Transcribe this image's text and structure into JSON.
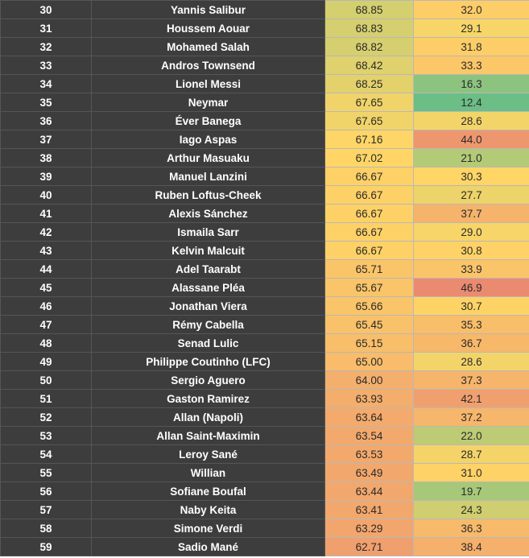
{
  "table": {
    "rows": [
      {
        "rank": "30",
        "name": "Yannis Salibur",
        "v1": "68.85",
        "v2": "32.0"
      },
      {
        "rank": "31",
        "name": "Houssem Aouar",
        "v1": "68.83",
        "v2": "29.1"
      },
      {
        "rank": "32",
        "name": "Mohamed Salah",
        "v1": "68.82",
        "v2": "31.8"
      },
      {
        "rank": "33",
        "name": "Andros Townsend",
        "v1": "68.42",
        "v2": "33.3"
      },
      {
        "rank": "34",
        "name": "Lionel Messi",
        "v1": "68.25",
        "v2": "16.3"
      },
      {
        "rank": "35",
        "name": "Neymar",
        "v1": "67.65",
        "v2": "12.4"
      },
      {
        "rank": "36",
        "name": "Éver Banega",
        "v1": "67.65",
        "v2": "28.6"
      },
      {
        "rank": "37",
        "name": "Iago Aspas",
        "v1": "67.16",
        "v2": "44.0"
      },
      {
        "rank": "38",
        "name": "Arthur Masuaku",
        "v1": "67.02",
        "v2": "21.0"
      },
      {
        "rank": "39",
        "name": "Manuel Lanzini",
        "v1": "66.67",
        "v2": "30.3"
      },
      {
        "rank": "40",
        "name": "Ruben Loftus-Cheek",
        "v1": "66.67",
        "v2": "27.7"
      },
      {
        "rank": "41",
        "name": "Alexis Sánchez",
        "v1": "66.67",
        "v2": "37.7"
      },
      {
        "rank": "42",
        "name": "Ismaila Sarr",
        "v1": "66.67",
        "v2": "29.0"
      },
      {
        "rank": "43",
        "name": "Kelvin Malcuit",
        "v1": "66.67",
        "v2": "30.8"
      },
      {
        "rank": "44",
        "name": "Adel Taarabt",
        "v1": "65.71",
        "v2": "33.9"
      },
      {
        "rank": "45",
        "name": "Alassane Pléa",
        "v1": "65.67",
        "v2": "46.9"
      },
      {
        "rank": "46",
        "name": "Jonathan Viera",
        "v1": "65.66",
        "v2": "30.7"
      },
      {
        "rank": "47",
        "name": "Rémy Cabella",
        "v1": "65.45",
        "v2": "35.3"
      },
      {
        "rank": "48",
        "name": "Senad Lulic",
        "v1": "65.15",
        "v2": "36.7"
      },
      {
        "rank": "49",
        "name": "Philippe Coutinho (LFC)",
        "v1": "65.00",
        "v2": "28.6"
      },
      {
        "rank": "50",
        "name": "Sergio Aguero",
        "v1": "64.00",
        "v2": "37.3"
      },
      {
        "rank": "51",
        "name": "Gaston Ramirez",
        "v1": "63.93",
        "v2": "42.1"
      },
      {
        "rank": "52",
        "name": "Allan (Napoli)",
        "v1": "63.64",
        "v2": "37.2"
      },
      {
        "rank": "53",
        "name": "Allan Saint-Maximin",
        "v1": "63.54",
        "v2": "22.0"
      },
      {
        "rank": "54",
        "name": "Leroy Sané",
        "v1": "63.53",
        "v2": "28.7"
      },
      {
        "rank": "55",
        "name": "Willian",
        "v1": "63.49",
        "v2": "31.0"
      },
      {
        "rank": "56",
        "name": "Sofiane Boufal",
        "v1": "63.44",
        "v2": "19.7"
      },
      {
        "rank": "57",
        "name": "Naby Keita",
        "v1": "63.41",
        "v2": "24.3"
      },
      {
        "rank": "58",
        "name": "Simone Verdi",
        "v1": "63.29",
        "v2": "36.3"
      },
      {
        "rank": "59",
        "name": "Sadio Mané",
        "v1": "62.71",
        "v2": "38.4"
      }
    ]
  },
  "colors": {
    "dark_cell": "#3d3d3d",
    "scale_low": "#e67c73",
    "scale_mid": "#ffd666",
    "scale_high": "#57bb8a"
  }
}
